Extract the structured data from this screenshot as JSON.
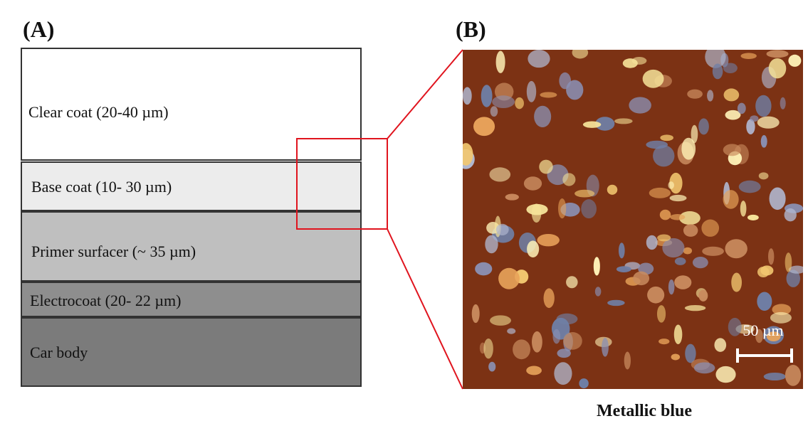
{
  "panel_a": {
    "label": "(A)",
    "layers": [
      {
        "label": "Clear coat (20-40 µm)"
      },
      {
        "label": "Base coat (10- 30 µm)"
      },
      {
        "label": "Primer surfacer  (~ 35 µm)"
      },
      {
        "label": "Electrocoat  (20- 22 µm)"
      },
      {
        "label": "Car body"
      }
    ]
  },
  "panel_b": {
    "label": "(B)",
    "scale_bar": "50 µm",
    "caption": "Metallic blue"
  }
}
